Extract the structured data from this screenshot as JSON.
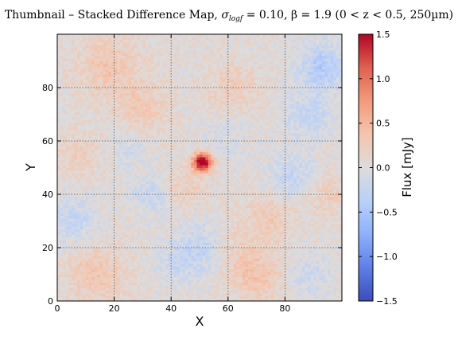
{
  "chart_data": {
    "type": "heatmap",
    "title": "Thumbnail – Stacked Difference Map, σ_logf = 0.10, β = 1.9 (0 < z < 0.5, 250µm)",
    "title_parts": {
      "prefix": "Thumbnail – Stacked Difference Map, ",
      "sigma": "σ",
      "sigma_sub": "logf",
      "sigma_val": " = 0.10,  β = 1.9 (0 < z < 0.5,  250µm)"
    },
    "xlabel": "X",
    "ylabel": "Y",
    "xlim": [
      0,
      100
    ],
    "ylim": [
      0,
      100
    ],
    "xticks": [
      "0",
      "20",
      "40",
      "60",
      "80"
    ],
    "yticks": [
      "0",
      "20",
      "40",
      "60",
      "80"
    ],
    "grid": true,
    "grid_style": "dotted",
    "grid_size": [
      100,
      100
    ],
    "peak": {
      "x": 51,
      "y": 52,
      "value": 1.5
    },
    "colorbar": {
      "label": "Flux [mJy]",
      "min": -1.5,
      "max": 1.5,
      "ticks": [
        "−1.5",
        "−1.0",
        "−0.5",
        "0.0",
        "0.5",
        "1.0",
        "1.5"
      ],
      "colormap": "coolwarm"
    }
  },
  "colors": {
    "cold": "#3b4cc0",
    "neutral": "#dddddd",
    "hot": "#b40426"
  }
}
